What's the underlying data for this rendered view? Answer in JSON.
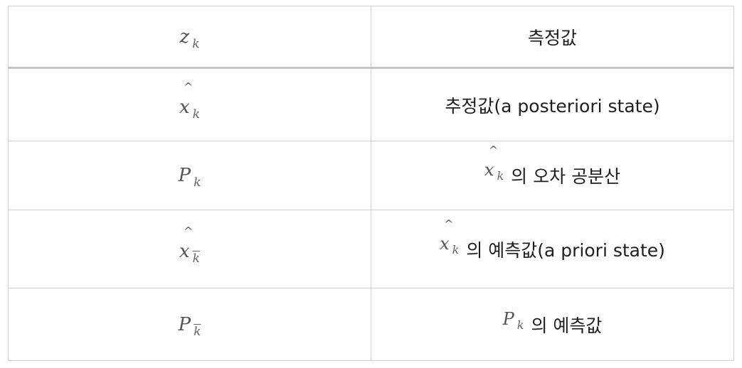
{
  "table": {
    "header": {
      "symbol": "z",
      "symbol_sub": "k",
      "label": "측정값"
    },
    "rows": [
      {
        "symbol": "x",
        "symbol_hat": "^",
        "symbol_sub": "k",
        "label": "추정값(a posteriori state)"
      },
      {
        "symbol": "P",
        "symbol_sub": "k",
        "ref_symbol": "x",
        "ref_hat": "^",
        "ref_sub": "k",
        "label": "의 오차 공분산"
      },
      {
        "symbol": "x",
        "symbol_hat": "^",
        "symbol_sub": "k",
        "ref_symbol": "x",
        "ref_hat": "^",
        "ref_sub": "k",
        "label": "의 예측값(a priori state)"
      },
      {
        "symbol": "P",
        "symbol_sub": "k",
        "ref_symbol": "P",
        "ref_sub": "k",
        "label": "의 예측값"
      }
    ]
  }
}
